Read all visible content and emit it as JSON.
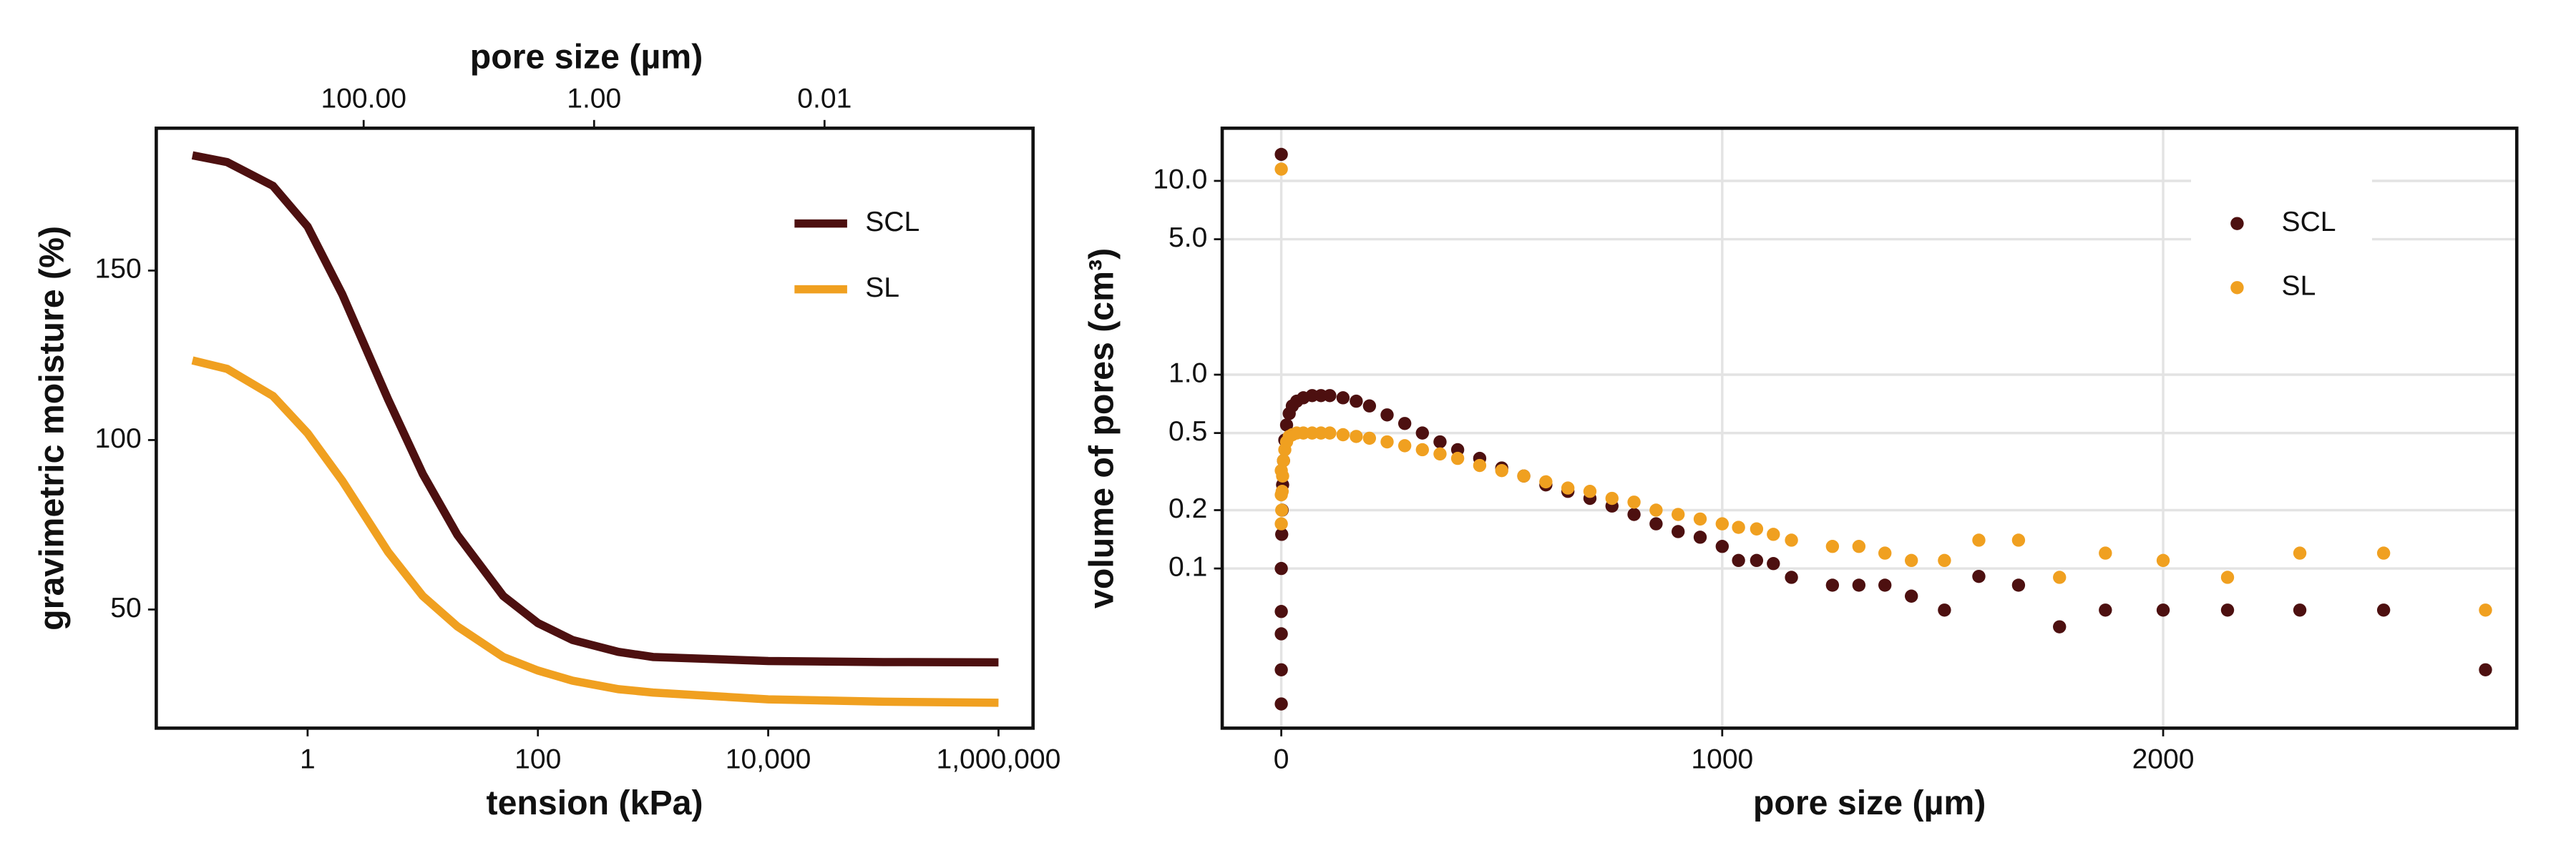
{
  "chart_data": [
    {
      "type": "line",
      "xlabel": "tension (kPa)",
      "ylabel": "gravimetric moisture (%)",
      "x2label": "pore size (µm)",
      "xscale": "log",
      "xlim": [
        0.0485,
        1995000
      ],
      "xticks": [
        1,
        100,
        {
          "value": 10000,
          "label": "10,000"
        },
        {
          "value": 1000000,
          "label": "1,000,000"
        }
      ],
      "x2scale": "log",
      "x2lim": [
        6310,
        0.000155
      ],
      "x2ticks": [
        {
          "value": 100,
          "label": "100.00"
        },
        {
          "value": 1,
          "label": "1.00"
        },
        {
          "value": 0.01,
          "label": "0.01"
        }
      ],
      "ylim": [
        15,
        192
      ],
      "yticks": [
        50,
        100,
        150
      ],
      "legend": "upper right",
      "grid": false,
      "x": [
        0.1,
        0.2,
        0.5,
        1,
        2,
        5,
        10,
        20,
        50,
        100,
        200,
        500,
        1000,
        10000,
        100000,
        1000000
      ],
      "series": [
        {
          "name": "SCL",
          "color": "#4d1010",
          "values": [
            184,
            182,
            175,
            163,
            143,
            112,
            90,
            72,
            54,
            46,
            41,
            37.5,
            36,
            34.8,
            34.5,
            34.4
          ]
        },
        {
          "name": "SL",
          "color": "#f0a020",
          "values": [
            123.5,
            121,
            113,
            102,
            88,
            67,
            54,
            45,
            36,
            32,
            29,
            26.5,
            25.5,
            23.5,
            22.8,
            22.5
          ]
        }
      ]
    },
    {
      "type": "scatter",
      "xlabel": "pore size (µm)",
      "ylabel": "volume of pores (cm³)",
      "xlim": [
        -134,
        2802
      ],
      "xticks": [
        0,
        1000,
        2000
      ],
      "yscale": "log",
      "ylim": [
        0.015,
        18.7
      ],
      "yticks": [
        0.1,
        0.2,
        0.5,
        {
          "value": 1,
          "label": "1.0"
        },
        {
          "value": 5,
          "label": "5.0"
        },
        {
          "value": 10,
          "label": "10.0"
        }
      ],
      "legend": "upper right",
      "grid": true,
      "series": [
        {
          "name": "SCL",
          "color": "#4d1010",
          "x": [
            0,
            0,
            0,
            0,
            0,
            0,
            1,
            2,
            3,
            5,
            8,
            12,
            18,
            25,
            35,
            50,
            70,
            90,
            110,
            140,
            170,
            200,
            240,
            280,
            320,
            360,
            400,
            450,
            500,
            550,
            600,
            650,
            700,
            750,
            800,
            850,
            900,
            950,
            1000,
            1037,
            1078,
            1116,
            1157,
            1250,
            1310,
            1369,
            1429,
            1504,
            1582,
            1672,
            1765,
            1869,
            2000,
            2146,
            2310,
            2500,
            2731
          ],
          "values": [
            13.7,
            0.02,
            0.03,
            0.046,
            0.06,
            0.1,
            0.15,
            0.2,
            0.27,
            0.36,
            0.46,
            0.55,
            0.63,
            0.69,
            0.73,
            0.76,
            0.78,
            0.78,
            0.78,
            0.76,
            0.73,
            0.69,
            0.62,
            0.56,
            0.5,
            0.45,
            0.41,
            0.37,
            0.33,
            0.3,
            0.27,
            0.25,
            0.23,
            0.21,
            0.19,
            0.17,
            0.155,
            0.145,
            0.13,
            0.11,
            0.11,
            0.106,
            0.09,
            0.082,
            0.082,
            0.082,
            0.072,
            0.061,
            0.091,
            0.082,
            0.05,
            0.061,
            0.061,
            0.061,
            0.061,
            0.061,
            0.03
          ]
        },
        {
          "name": "SL",
          "color": "#f0a020",
          "x": [
            0,
            0,
            0,
            0,
            1,
            2,
            3,
            5,
            8,
            12,
            18,
            25,
            35,
            50,
            70,
            90,
            110,
            140,
            170,
            200,
            240,
            280,
            320,
            360,
            400,
            450,
            500,
            550,
            600,
            650,
            700,
            750,
            800,
            850,
            900,
            950,
            1000,
            1037,
            1078,
            1116,
            1157,
            1250,
            1310,
            1369,
            1429,
            1504,
            1582,
            1672,
            1765,
            1869,
            2000,
            2146,
            2310,
            2500,
            2731
          ],
          "values": [
            11.5,
            0.32,
            0.24,
            0.17,
            0.2,
            0.25,
            0.3,
            0.36,
            0.41,
            0.45,
            0.48,
            0.49,
            0.5,
            0.5,
            0.5,
            0.5,
            0.5,
            0.49,
            0.48,
            0.47,
            0.45,
            0.43,
            0.41,
            0.39,
            0.37,
            0.34,
            0.32,
            0.3,
            0.28,
            0.26,
            0.25,
            0.23,
            0.22,
            0.2,
            0.19,
            0.18,
            0.17,
            0.163,
            0.16,
            0.15,
            0.14,
            0.13,
            0.13,
            0.12,
            0.11,
            0.11,
            0.14,
            0.14,
            0.09,
            0.12,
            0.11,
            0.09,
            0.12,
            0.12,
            0.061
          ]
        }
      ]
    }
  ]
}
